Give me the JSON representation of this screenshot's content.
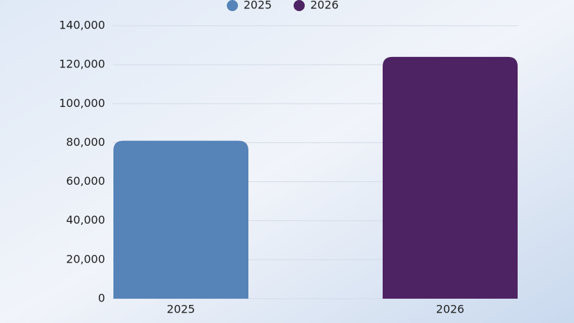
{
  "chart_data": {
    "type": "bar",
    "categories": [
      "2025",
      "2026"
    ],
    "series": [
      {
        "name": "2025",
        "color": "#5683b8",
        "values": [
          81000,
          null
        ]
      },
      {
        "name": "2026",
        "color": "#4e2363",
        "values": [
          null,
          124000
        ]
      }
    ],
    "ylim": [
      0,
      140000
    ],
    "yticks": [
      0,
      {
        "value": 20000,
        "label": "20,000"
      },
      {
        "value": 40000,
        "label": "40,000"
      },
      {
        "value": 60000,
        "label": "60,000"
      },
      {
        "value": 80000,
        "label": "80,000"
      },
      {
        "value": 100000,
        "label": "100,000"
      },
      {
        "value": 120000,
        "label": "120,000"
      },
      {
        "value": 140000,
        "label": "140,000"
      }
    ],
    "grid": true,
    "legend": "top"
  }
}
